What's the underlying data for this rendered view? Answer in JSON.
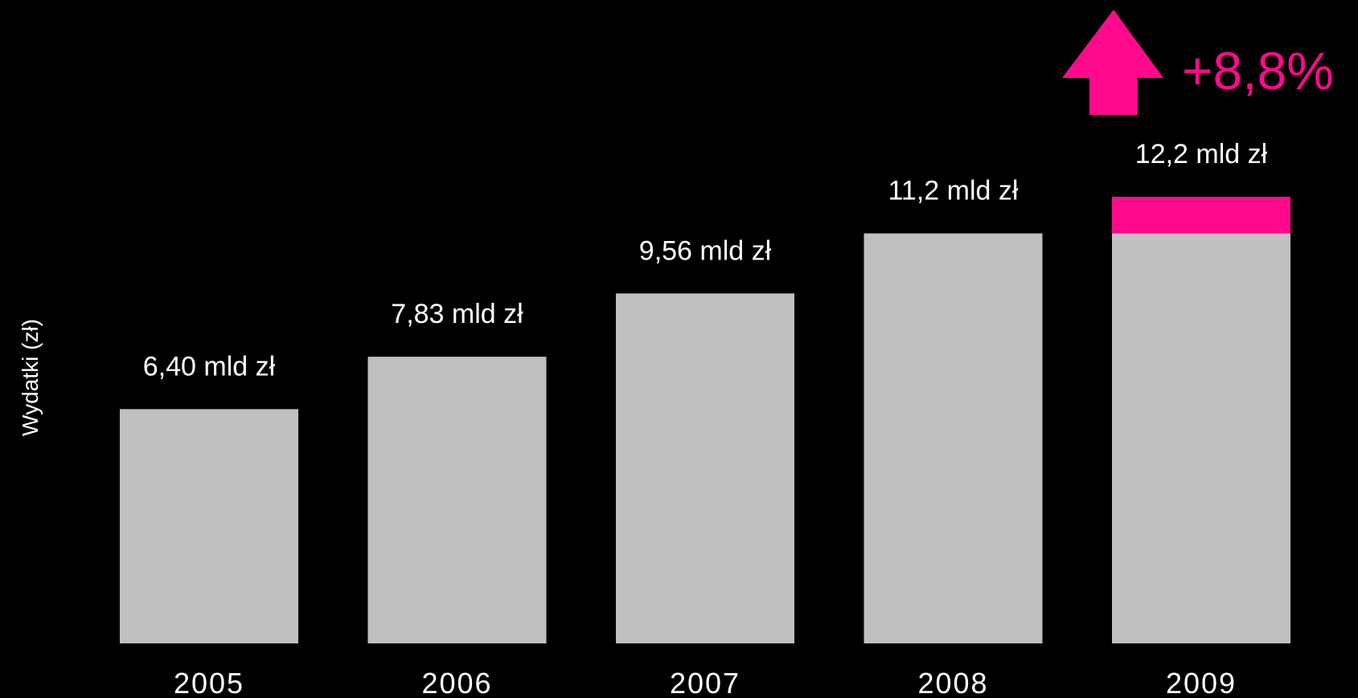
{
  "colors": {
    "background": "#000000",
    "bar": "#c0c0c0",
    "accent": "#ff0a8c",
    "text": "#ffffff"
  },
  "chart_data": {
    "type": "bar",
    "ylabel": "Wydatki (zł)",
    "categories": [
      "2005",
      "2006",
      "2007",
      "2008",
      "2009"
    ],
    "values": [
      6.4,
      7.83,
      9.56,
      11.2,
      12.2
    ],
    "data_labels": [
      "6,40 mld zł",
      "7,83 mld zł",
      "9,56 mld zł",
      "11,2 mld zł",
      "12,2 mld zł"
    ],
    "increment": {
      "category": "2009",
      "from": 11.2,
      "to": 12.2
    },
    "growth": {
      "label": "+8,8%",
      "icon": "up-arrow-icon"
    },
    "ylim": [
      0,
      12.2
    ],
    "grid": false,
    "legend": "none"
  }
}
